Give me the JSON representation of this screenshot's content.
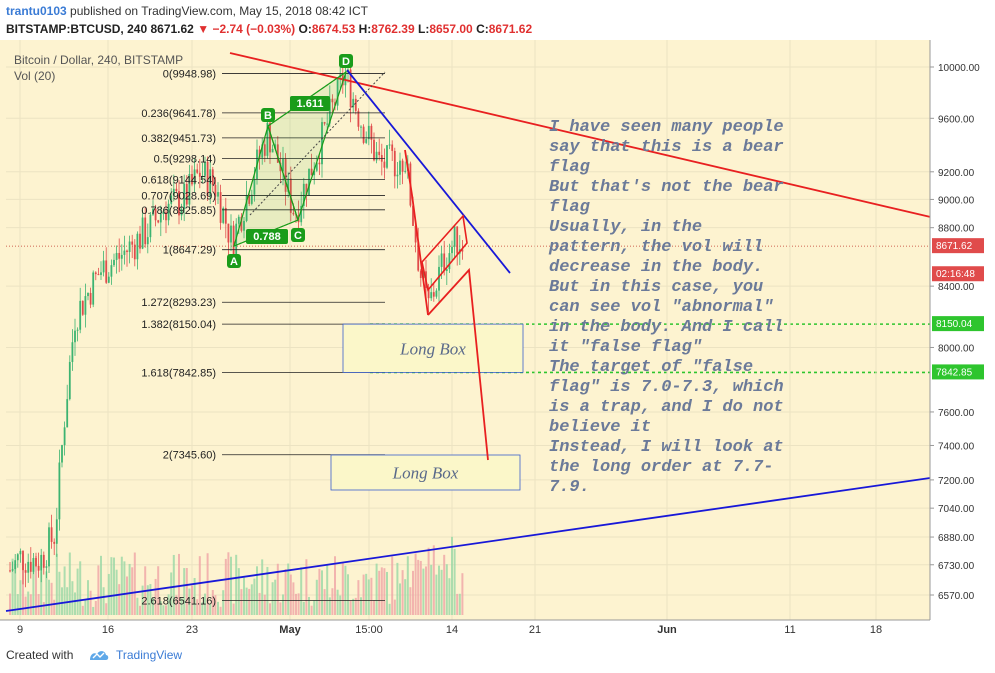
{
  "header": {
    "author": "trantu0103",
    "published_text": "published on TradingView.com, May 15, 2018 08:42 ICT",
    "symbol": "BITSTAMP:BTCUSD, 240",
    "last": "8671.62",
    "change": "−2.74 (−0.03%)",
    "o_label": "O:",
    "o": "8674.53",
    "h_label": "H:",
    "h": "8762.39",
    "l_label": "L:",
    "l": "8657.00",
    "c_label": "C:",
    "c": "8671.62"
  },
  "chart_info": {
    "title": "Bitcoin / Dollar, 240, BITSTAMP",
    "vol_label": "Vol (20)"
  },
  "colors": {
    "background": "#fdf3d0",
    "up": "#3cb371",
    "down": "#e04b4b",
    "trend_red": "#e82020",
    "trend_blue": "#1818d8",
    "harmonic": "#1a9c1a",
    "annotation": "#6b7a99"
  },
  "chart_data": {
    "type": "candlestick",
    "title": "Bitcoin / Dollar, 240, BITSTAMP",
    "y_scale": "log",
    "y_ticks": [
      "10000.00",
      "9600.00",
      "9200.00",
      "9000.00",
      "8800.00",
      "8400.00",
      "8000.00",
      "7600.00",
      "7400.00",
      "7200.00",
      "7040.00",
      "6880.00",
      "6730.00",
      "6570.00"
    ],
    "x_ticks": [
      "9",
      "16",
      "23",
      "May",
      "15:00",
      "14",
      "21",
      "Jun",
      "11",
      "18"
    ],
    "price_labels": [
      {
        "text": "8671.62",
        "value": 8671.62,
        "color": "#e04b4b"
      },
      {
        "text": "02:16:48",
        "value": 8480,
        "color": "#e04b4b"
      },
      {
        "text": "8150.04",
        "value": 8150.04,
        "color": "#2ec52e"
      },
      {
        "text": "7842.85",
        "value": 7842.85,
        "color": "#2ec52e"
      }
    ],
    "fib_levels": [
      {
        "ratio": "0",
        "price": "9948.98"
      },
      {
        "ratio": "0.236",
        "price": "9641.78"
      },
      {
        "ratio": "0.382",
        "price": "9451.73"
      },
      {
        "ratio": "0.5",
        "price": "9298.14"
      },
      {
        "ratio": "0.618",
        "price": "9144.54"
      },
      {
        "ratio": "0.707",
        "price": "9028.69"
      },
      {
        "ratio": "0.786",
        "price": "8925.85"
      },
      {
        "ratio": "1",
        "price": "8647.29"
      },
      {
        "ratio": "1.272",
        "price": "8293.23"
      },
      {
        "ratio": "1.382",
        "price": "8150.04"
      },
      {
        "ratio": "1.618",
        "price": "7842.85"
      },
      {
        "ratio": "2",
        "price": "7345.60"
      },
      {
        "ratio": "2.618",
        "price": "6541.16"
      }
    ],
    "harmonic": {
      "points": [
        "A",
        "B",
        "C",
        "D"
      ],
      "ratios": [
        "1.611",
        "0.788"
      ]
    },
    "boxes": [
      "Long Box",
      "Long Box"
    ],
    "annotation": [
      "I have seen many people",
      "say that this is a bear",
      "flag",
      "But that's not the bear",
      "flag",
      "Usually, in the",
      "pattern, the vol will",
      "decrease in the body.",
      "But in this case, you",
      "can see vol \"abnormal\"",
      "in the body. And I call",
      "it \"false flag\"",
      "The target of \"false",
      "flag\" is 7.0-7.3, which",
      "is a trap, and I do not",
      "believe it",
      "Instead, I will look at",
      "the long order at 7.7-",
      "7.9."
    ]
  },
  "footer": {
    "created_with": "Created with",
    "brand": "TradingView"
  }
}
